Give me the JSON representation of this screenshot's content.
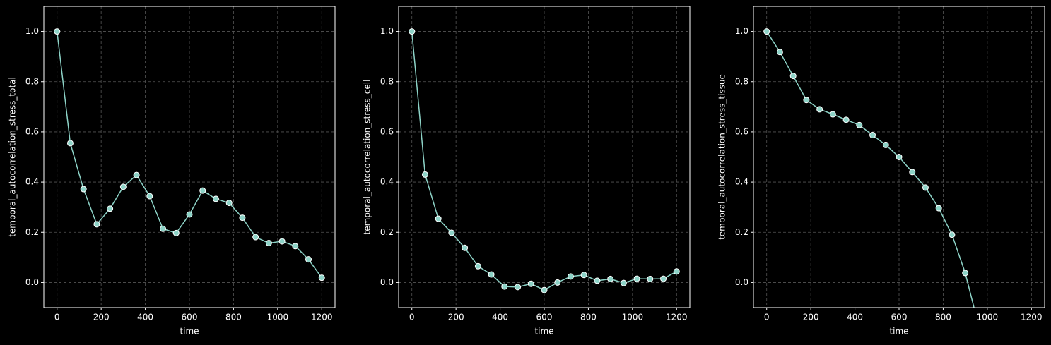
{
  "chart_data": [
    {
      "type": "line",
      "xlabel": "time",
      "ylabel": "temporal_autocorrelation_stress_total",
      "x": [
        0,
        60,
        120,
        180,
        240,
        300,
        360,
        420,
        480,
        540,
        600,
        660,
        720,
        780,
        840,
        900,
        960,
        1020,
        1080,
        1140,
        1200
      ],
      "series": [
        {
          "color": "#8dd3c7",
          "values": [
            1.0,
            0.555,
            0.372,
            0.232,
            0.294,
            0.381,
            0.428,
            0.344,
            0.214,
            0.197,
            0.271,
            0.366,
            0.333,
            0.317,
            0.258,
            0.181,
            0.157,
            0.164,
            0.145,
            0.092,
            0.019
          ]
        }
      ],
      "xlim": [
        -60,
        1260
      ],
      "ylim": [
        -0.1,
        1.1
      ],
      "xticks": [
        0,
        200,
        400,
        600,
        800,
        1000,
        1200
      ],
      "yticks": [
        {
          "value": 0.0,
          "label": "0.0"
        },
        0.2,
        0.4,
        0.6,
        0.8,
        {
          "value": 1.0,
          "label": "1.0"
        }
      ],
      "grid": true
    },
    {
      "type": "line",
      "xlabel": "time",
      "ylabel": "temporal_autocorrelation_stress_cell",
      "x": [
        0,
        60,
        120,
        180,
        240,
        300,
        360,
        420,
        480,
        540,
        600,
        660,
        720,
        780,
        840,
        900,
        960,
        1020,
        1080,
        1140,
        1200
      ],
      "series": [
        {
          "color": "#8dd3c7",
          "values": [
            1.0,
            0.43,
            0.254,
            0.198,
            0.138,
            0.065,
            0.032,
            -0.016,
            -0.018,
            -0.005,
            -0.03,
            0.0,
            0.024,
            0.03,
            0.007,
            0.014,
            -0.002,
            0.015,
            0.014,
            0.015,
            0.044
          ]
        }
      ],
      "xlim": [
        -60,
        1260
      ],
      "ylim": [
        -0.1,
        1.1
      ],
      "xticks": [
        0,
        200,
        400,
        600,
        800,
        1000,
        1200
      ],
      "yticks": [
        {
          "value": 0.0,
          "label": "0.0"
        },
        0.2,
        0.4,
        0.6,
        0.8,
        {
          "value": 1.0,
          "label": "1.0"
        }
      ],
      "grid": true
    },
    {
      "type": "line",
      "xlabel": "time",
      "ylabel": "temporal_autocorrelation_stress_tissue",
      "x": [
        0,
        60,
        120,
        180,
        240,
        300,
        360,
        420,
        480,
        540,
        600,
        660,
        720,
        780,
        840,
        900,
        960
      ],
      "series": [
        {
          "color": "#8dd3c7",
          "values": [
            1.0,
            0.918,
            0.823,
            0.727,
            0.69,
            0.67,
            0.648,
            0.627,
            0.587,
            0.548,
            0.5,
            0.44,
            0.378,
            0.296,
            0.19,
            0.038,
            -0.17
          ]
        }
      ],
      "xlim": [
        -60,
        1260
      ],
      "ylim": [
        -0.1,
        1.1
      ],
      "xticks": [
        0,
        200,
        400,
        600,
        800,
        1000,
        1200
      ],
      "yticks": [
        {
          "value": 0.0,
          "label": "0.0"
        },
        0.2,
        0.4,
        0.6,
        0.8,
        {
          "value": 1.0,
          "label": "1.0"
        }
      ],
      "grid": true
    }
  ]
}
